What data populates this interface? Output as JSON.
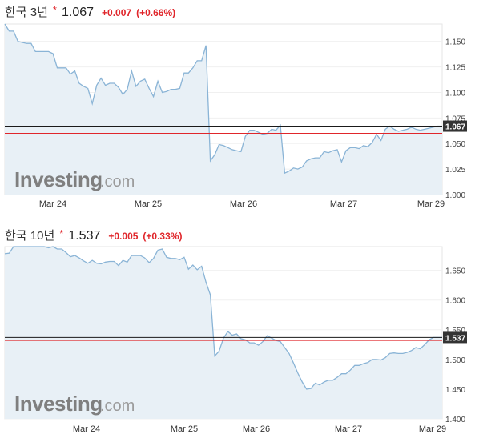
{
  "colors": {
    "line": "#8ab4d6",
    "fill": "#e8f0f6",
    "up": "#e0262b",
    "tag_bg": "#333333",
    "ref_red": "#e0262b",
    "ref_black": "#1a1a1a"
  },
  "watermark": {
    "main": "Investing",
    "suffix": ".com"
  },
  "charts": [
    {
      "header": {
        "name": "한국 3년",
        "star": "*",
        "price": "1.067",
        "change": "+0.007",
        "change_pct": "(+0.66%)"
      },
      "price_tag": "1.067",
      "x_labels": [
        "Mar 24",
        "Mar 25",
        "Mar 26",
        "Mar 27",
        "Mar 29"
      ],
      "y_ticks": [
        "1.150",
        "1.125",
        "1.100",
        "1.075",
        "1.050",
        "1.025",
        "1.000"
      ]
    },
    {
      "header": {
        "name": "한국 10년",
        "star": "*",
        "price": "1.537",
        "change": "+0.005",
        "change_pct": "(+0.33%)"
      },
      "price_tag": "1.537",
      "x_labels": [
        "Mar 24",
        "Mar 25",
        "Mar 26",
        "Mar 27",
        "Mar 29"
      ],
      "y_ticks": [
        "1.650",
        "1.600",
        "1.550",
        "1.500",
        "1.450",
        "1.400"
      ]
    }
  ],
  "chart_data": [
    {
      "type": "area",
      "ylim": [
        1.0,
        1.167
      ],
      "y_ticks": [
        1.15,
        1.125,
        1.1,
        1.075,
        1.05,
        1.025,
        1.0
      ],
      "last": 1.067,
      "prev_close": 1.06,
      "x": [
        0,
        1,
        2,
        3,
        4,
        5,
        6,
        7,
        8,
        9,
        10,
        11,
        12,
        13,
        14,
        15,
        16,
        17,
        18,
        19,
        20,
        21,
        22,
        23,
        24,
        25,
        26,
        27,
        28,
        29,
        30,
        31,
        32,
        33,
        34,
        35,
        36,
        37,
        38,
        39,
        40,
        41,
        42,
        43,
        44,
        45,
        46,
        47,
        48,
        49,
        50,
        51,
        52,
        53,
        54,
        55,
        56,
        57,
        58,
        59,
        60,
        61,
        62,
        63,
        64,
        65,
        66,
        67,
        68,
        69,
        70,
        71,
        72,
        73,
        74,
        75,
        76,
        77,
        78,
        79,
        80,
        81,
        82,
        83,
        84,
        85,
        86,
        87,
        88,
        89,
        90,
        91,
        92,
        93,
        94,
        95,
        96,
        97,
        98,
        99,
        100
      ],
      "values": [
        1.17,
        1.16,
        1.16,
        1.15,
        1.149,
        1.148,
        1.148,
        1.14,
        1.14,
        1.14,
        1.14,
        1.138,
        1.124,
        1.124,
        1.124,
        1.118,
        1.121,
        1.109,
        1.106,
        1.104,
        1.089,
        1.107,
        1.114,
        1.107,
        1.109,
        1.109,
        1.105,
        1.098,
        1.103,
        1.121,
        1.106,
        1.111,
        1.113,
        1.104,
        1.096,
        1.111,
        1.1,
        1.101,
        1.103,
        1.103,
        1.104,
        1.119,
        1.119,
        1.124,
        1.131,
        1.131,
        1.146,
        1.033,
        1.039,
        1.049,
        1.048,
        1.046,
        1.044,
        1.043,
        1.042,
        1.057,
        1.063,
        1.063,
        1.061,
        1.059,
        1.06,
        1.064,
        1.063,
        1.068,
        1.021,
        1.023,
        1.026,
        1.025,
        1.027,
        1.033,
        1.035,
        1.036,
        1.036,
        1.042,
        1.041,
        1.043,
        1.044,
        1.032,
        1.043,
        1.046,
        1.046,
        1.045,
        1.048,
        1.047,
        1.051,
        1.059,
        1.053,
        1.064,
        1.067,
        1.064,
        1.062,
        1.063,
        1.064,
        1.066,
        1.064,
        1.063,
        1.064,
        1.065,
        1.066,
        1.067,
        1.067
      ]
    },
    {
      "type": "area",
      "ylim": [
        1.4,
        1.69
      ],
      "y_ticks": [
        1.65,
        1.6,
        1.55,
        1.5,
        1.45,
        1.4
      ],
      "last": 1.537,
      "prev_close": 1.532,
      "x": [
        0,
        1,
        2,
        3,
        4,
        5,
        6,
        7,
        8,
        9,
        10,
        11,
        12,
        13,
        14,
        15,
        16,
        17,
        18,
        19,
        20,
        21,
        22,
        23,
        24,
        25,
        26,
        27,
        28,
        29,
        30,
        31,
        32,
        33,
        34,
        35,
        36,
        37,
        38,
        39,
        40,
        41,
        42,
        43,
        44,
        45,
        46,
        47,
        48,
        49,
        50,
        51,
        52,
        53,
        54,
        55,
        56,
        57,
        58,
        59,
        60,
        61,
        62,
        63,
        64,
        65,
        66,
        67,
        68,
        69,
        70,
        71,
        72,
        73,
        74,
        75,
        76,
        77,
        78,
        79,
        80,
        81,
        82,
        83,
        84,
        85,
        86,
        87,
        88,
        89,
        90,
        91,
        92,
        93,
        94,
        95,
        96,
        97,
        98,
        99,
        100
      ],
      "values": [
        1.678,
        1.679,
        1.69,
        1.695,
        1.7,
        1.692,
        1.702,
        1.7,
        1.693,
        1.698,
        1.688,
        1.692,
        1.686,
        1.686,
        1.68,
        1.673,
        1.675,
        1.671,
        1.666,
        1.662,
        1.667,
        1.662,
        1.661,
        1.664,
        1.665,
        1.665,
        1.658,
        1.667,
        1.664,
        1.675,
        1.675,
        1.675,
        1.671,
        1.663,
        1.67,
        1.684,
        1.686,
        1.672,
        1.67,
        1.67,
        1.668,
        1.672,
        1.652,
        1.659,
        1.651,
        1.657,
        1.63,
        1.609,
        1.506,
        1.514,
        1.536,
        1.547,
        1.541,
        1.543,
        1.535,
        1.533,
        1.528,
        1.528,
        1.524,
        1.53,
        1.54,
        1.536,
        1.532,
        1.53,
        1.52,
        1.51,
        1.494,
        1.477,
        1.462,
        1.45,
        1.451,
        1.46,
        1.457,
        1.462,
        1.465,
        1.465,
        1.47,
        1.476,
        1.476,
        1.482,
        1.49,
        1.49,
        1.493,
        1.495,
        1.5,
        1.5,
        1.499,
        1.503,
        1.51,
        1.511,
        1.51,
        1.51,
        1.512,
        1.515,
        1.52,
        1.518,
        1.525,
        1.533,
        1.537,
        1.537,
        1.537
      ]
    }
  ]
}
